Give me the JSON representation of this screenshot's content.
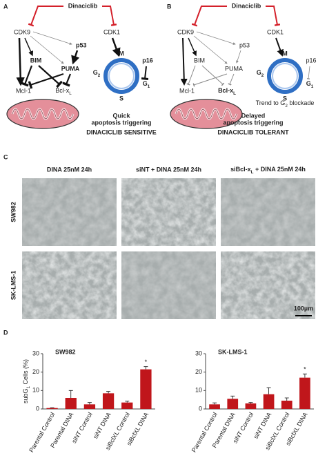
{
  "panels": {
    "a": {
      "letter": "A",
      "drug": "Dinaciclib",
      "cdk9": "CDK9",
      "cdk1": "CDK1",
      "p53": "p53",
      "bim": "BIM",
      "puma": "PUMA",
      "mcl1": "Mcl-1",
      "bclx": {
        "text": "Bcl-x",
        "sub": "L"
      },
      "m": "M",
      "g2": {
        "text": "G",
        "sub": "2"
      },
      "s": "S",
      "g1": {
        "text": "G",
        "sub": "1"
      },
      "p16": "p16",
      "status": [
        "Quick",
        "apoptosis triggering"
      ],
      "outcome": "DINACICLIB SENSITIVE"
    },
    "b": {
      "letter": "B",
      "drug": "Dinaciclib",
      "cdk9": "CDK9",
      "cdk1": "CDK1",
      "p53": "p53",
      "bim": "BIM",
      "puma": "PUMA",
      "mcl1": "Mcl-1",
      "bclx": {
        "text": "Bcl-x",
        "sub": "L"
      },
      "m": "M",
      "g2": {
        "text": "G",
        "sub": "2"
      },
      "s": "S",
      "g1": {
        "text": "G",
        "sub": "1"
      },
      "p16": "p16",
      "note": {
        "text": "Trend to G",
        "sub": "2",
        "after": " blockade"
      },
      "status": [
        "Delayed",
        "apoptosis triggering"
      ],
      "outcome": "DINACICLIB TOLERANT"
    },
    "c": {
      "letter": "C",
      "columns": [
        "DINA 25nM 24h",
        "siNT + DINA 25nM 24h",
        {
          "text": "siBcl-x",
          "sub": "L",
          "after": " + DINA 25nM 24h"
        }
      ],
      "rows": [
        "SW982",
        "SK-LMS-1"
      ],
      "scale_bar": "100µm"
    },
    "d": {
      "letter": "D"
    }
  },
  "chart_data": [
    {
      "type": "bar",
      "title": "SW982",
      "ylabel": {
        "text": "subG",
        "sub": "1",
        "after": " Cells (%)"
      },
      "categories": [
        "Parental Control",
        "Parental DINA",
        "siNT Control",
        "siNT DINA",
        "siBclXL Control",
        "siBclXL DINA"
      ],
      "values": [
        0.5,
        6,
        2.5,
        8.5,
        3.5,
        21.5
      ],
      "errors": [
        0.2,
        4,
        1,
        1,
        0.7,
        1.5
      ],
      "significance": [
        null,
        null,
        null,
        null,
        null,
        "*"
      ],
      "color": "#c0161b",
      "ylim": [
        0,
        30
      ],
      "yticks": [
        0,
        10,
        20,
        30
      ]
    },
    {
      "type": "bar",
      "title": "SK-LMS-1",
      "categories": [
        "Parental Control",
        "Parental DINA",
        "siNT Control",
        "siNT DINA",
        "siBclXL Control",
        "siBclXL DINA"
      ],
      "values": [
        2.5,
        5.5,
        3,
        8,
        4.5,
        17
      ],
      "errors": [
        0.8,
        1.5,
        0.5,
        3.5,
        1.5,
        2
      ],
      "significance": [
        null,
        null,
        null,
        null,
        null,
        "*"
      ],
      "color": "#c0161b",
      "ylim": [
        0,
        30
      ],
      "yticks": [
        0,
        10,
        20,
        30
      ]
    }
  ]
}
